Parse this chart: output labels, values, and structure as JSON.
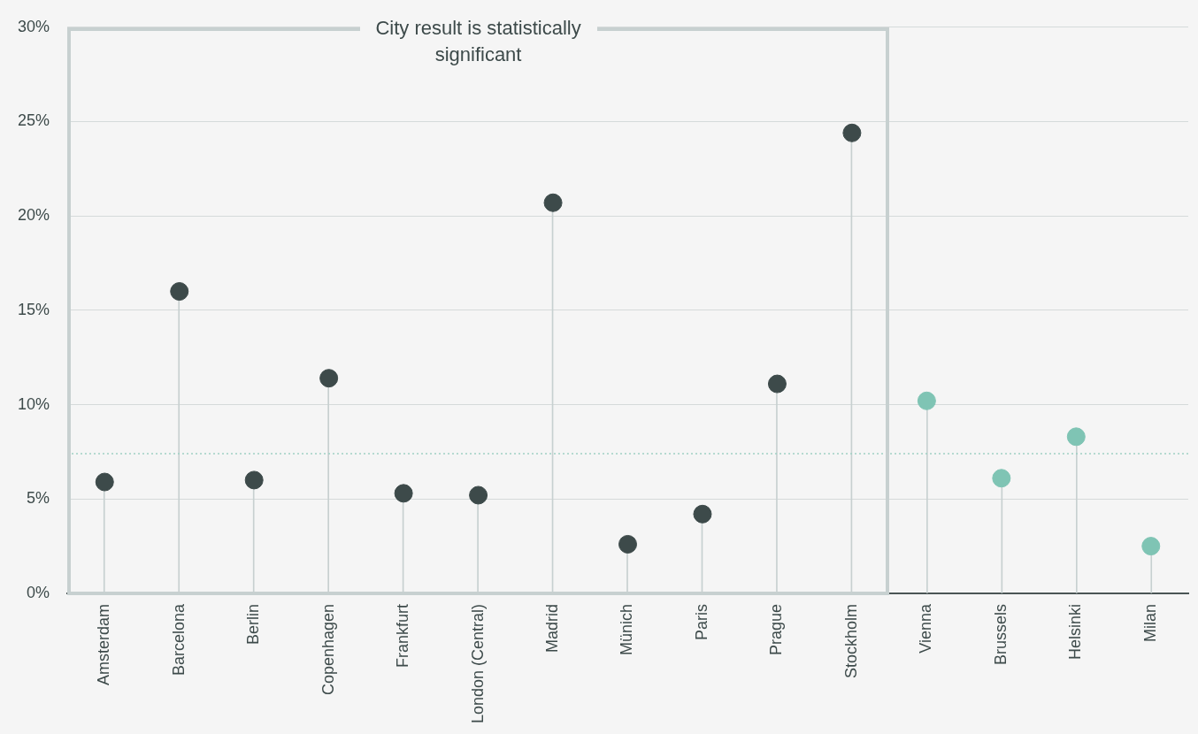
{
  "chart_data": {
    "type": "lollipop",
    "categories": [
      "Amsterdam",
      "Barcelona",
      "Berlin",
      "Copenhagen",
      "Frankfurt",
      "London (Central)",
      "Madrid",
      "Münich",
      "Paris",
      "Prague",
      "Stockholm",
      "Vienna",
      "Brussels",
      "Helsinki",
      "Milan"
    ],
    "series": [
      {
        "color": "#3d4a4a",
        "values": [
          5.9,
          16.0,
          6.0,
          11.4,
          5.3,
          5.2,
          20.7,
          2.6,
          4.2,
          11.1,
          24.4,
          null,
          null,
          null,
          null
        ]
      },
      {
        "color": "#7fc4b4",
        "values": [
          null,
          null,
          null,
          null,
          null,
          null,
          null,
          null,
          null,
          null,
          null,
          10.2,
          6.1,
          8.3,
          2.5
        ]
      }
    ],
    "ylim": [
      0,
      30
    ],
    "yticks": [
      {
        "value": 0,
        "label": "0%"
      },
      {
        "value": 5,
        "label": "5%"
      },
      {
        "value": 10,
        "label": "10%"
      },
      {
        "value": 15,
        "label": "15%"
      },
      {
        "value": 20,
        "label": "20%"
      },
      {
        "value": 25,
        "label": "25%"
      },
      {
        "value": 30,
        "label": "30%"
      }
    ],
    "grid": "y",
    "legend": false,
    "marker": "circle",
    "ref_lines": [
      {
        "axis": "y",
        "value": 7.4,
        "color": "#9fcfc4",
        "line_style": "dotted"
      }
    ],
    "annotations": [
      "City result is statistically significant"
    ]
  }
}
